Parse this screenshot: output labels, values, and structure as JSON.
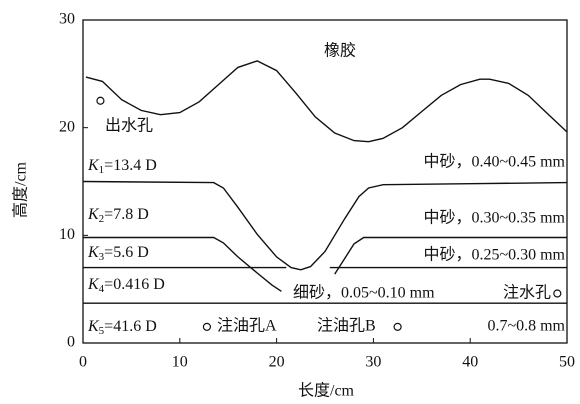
{
  "chart_data": {
    "type": "line",
    "xlabel": "长度/cm",
    "ylabel": "高度/cm",
    "xlim": [
      0,
      50
    ],
    "ylim": [
      0,
      30
    ],
    "xticks": [
      0,
      10,
      20,
      30,
      40,
      50
    ],
    "yticks": [
      0,
      10,
      20,
      30
    ],
    "series": [
      {
        "color": "#111111",
        "x": [
          0.3,
          2,
          4,
          6,
          8,
          10,
          12,
          14,
          16,
          18,
          20,
          22,
          24,
          26,
          28,
          29.5,
          31,
          33,
          35,
          37,
          39,
          41,
          42,
          44,
          46,
          48,
          50
        ],
        "values": [
          24.7,
          24.3,
          22.6,
          21.6,
          21.2,
          21.4,
          22.4,
          24.0,
          25.6,
          26.2,
          25.3,
          23.2,
          21.0,
          19.5,
          18.8,
          18.7,
          19.0,
          20.0,
          21.5,
          23.0,
          24.0,
          24.5,
          24.5,
          24.1,
          23.0,
          21.3,
          19.6
        ]
      },
      {
        "color": "#111111",
        "x": [
          0,
          13.5,
          14.5,
          16,
          18,
          20,
          21.5,
          22.5,
          23.5,
          25,
          27,
          28.5,
          29.5,
          31,
          40,
          50
        ],
        "values": [
          15.0,
          14.9,
          14.4,
          12.6,
          10.1,
          8.0,
          7.0,
          6.8,
          7.1,
          8.5,
          11.5,
          13.6,
          14.4,
          14.7,
          14.8,
          14.9
        ]
      },
      {
        "color": "#111111",
        "x": [
          0,
          13.5,
          14.5,
          16,
          18,
          19.5,
          20.5,
          null,
          26,
          27,
          28,
          29,
          40,
          50
        ],
        "values": [
          9.8,
          9.8,
          9.3,
          8.0,
          6.5,
          5.4,
          4.8,
          null,
          6.4,
          7.8,
          9.2,
          9.8,
          9.8,
          9.8
        ]
      },
      {
        "color": "#111111",
        "x": [
          0,
          21,
          null,
          25.5,
          50
        ],
        "values": [
          7.0,
          7.0,
          null,
          7.0,
          7.0
        ]
      },
      {
        "color": "#111111",
        "x": [
          0,
          50
        ],
        "values": [
          3.7,
          3.7
        ]
      }
    ],
    "rubber": "橡胶",
    "layers": [
      {
        "symbol": "K",
        "index": "1",
        "value": "=13.4 D"
      },
      {
        "symbol": "K",
        "index": "2",
        "value": "=7.8 D"
      },
      {
        "symbol": "K",
        "index": "3",
        "value": "=5.6 D"
      },
      {
        "symbol": "K",
        "index": "4",
        "value": "=0.416 D"
      },
      {
        "symbol": "K",
        "index": "5",
        "value": "=41.6 D"
      }
    ],
    "materials": [
      "中砂，0.40~0.45 mm",
      "中砂，0.30~0.35 mm",
      "中砂，0.25~0.30 mm",
      "细砂，0.05~0.10 mm",
      "0.7~0.8 mm"
    ],
    "holes": [
      {
        "label": "出水孔",
        "x": 1.8,
        "y": 22.5
      },
      {
        "label": "注水孔",
        "x": 49.0,
        "y": 4.6
      },
      {
        "label": "注油孔A",
        "x": 12.8,
        "y": 1.5
      },
      {
        "label": "注油孔B",
        "x": 32.5,
        "y": 1.5
      }
    ]
  }
}
